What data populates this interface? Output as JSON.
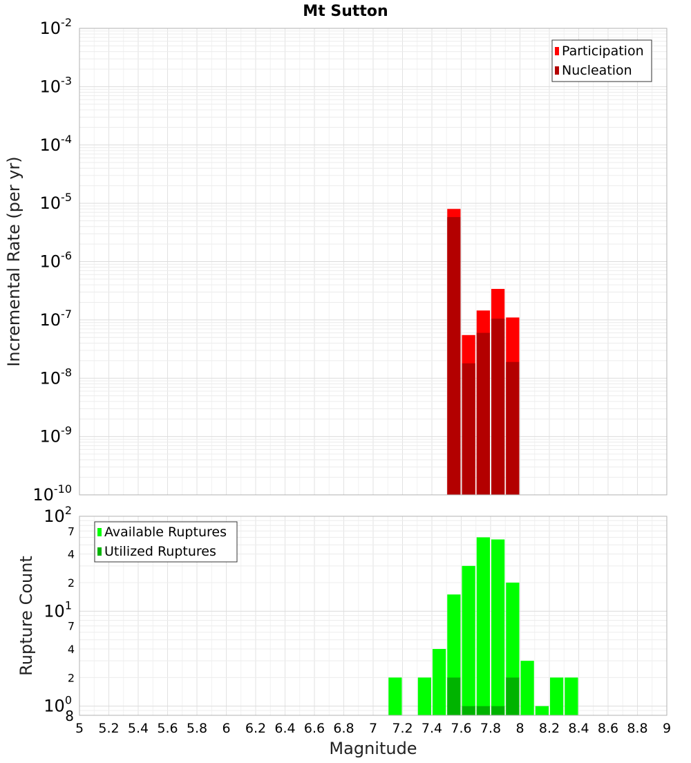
{
  "title": "Mt Sutton",
  "colors": {
    "participation": "#ff0000",
    "nucleation": "#b30000",
    "available": "#00ff00",
    "utilized": "#00b300",
    "grid": "#e4e4e4",
    "frame": "#b0b0b0"
  },
  "chart_data": [
    {
      "type": "bar",
      "panel": "top",
      "scale": "log",
      "ylabel": "Incremental Rate (per yr)",
      "ylim": [
        1e-10,
        0.01
      ],
      "yticks": [
        {
          "base": "10",
          "exp": "-10"
        },
        {
          "base": "10",
          "exp": "-9"
        },
        {
          "base": "10",
          "exp": "-8"
        },
        {
          "base": "10",
          "exp": "-7"
        },
        {
          "base": "10",
          "exp": "-6"
        },
        {
          "base": "10",
          "exp": "-5"
        },
        {
          "base": "10",
          "exp": "-4"
        },
        {
          "base": "10",
          "exp": "-3"
        },
        {
          "base": "10",
          "exp": "-2"
        }
      ],
      "grid": true,
      "legend_position": "top-right",
      "legend": [
        "Participation",
        "Nucleation"
      ],
      "bin_width": 0.1,
      "series": [
        {
          "name": "Participation",
          "x": [
            7.55,
            7.65,
            7.75,
            7.85,
            7.95
          ],
          "values": [
            8e-06,
            5.5e-08,
            1.45e-07,
            3.4e-07,
            1.1e-07
          ]
        },
        {
          "name": "Nucleation",
          "x": [
            7.55,
            7.65,
            7.75,
            7.85,
            7.95
          ],
          "values": [
            5.8e-06,
            1.8e-08,
            6e-08,
            1.05e-07,
            1.9e-08
          ]
        }
      ]
    },
    {
      "type": "bar",
      "panel": "bottom",
      "scale": "log",
      "ylabel": "Rupture Count",
      "ylim": [
        0.8,
        100
      ],
      "ytick_labels": {
        "major": [
          {
            "base": "10",
            "exp": "0"
          },
          {
            "base": "10",
            "exp": "1"
          },
          {
            "base": "10",
            "exp": "2"
          }
        ],
        "minor": [
          "8",
          "2",
          "4",
          "7",
          "2",
          "4",
          "7"
        ]
      },
      "grid": true,
      "legend_position": "top-left",
      "legend": [
        "Available Ruptures",
        "Utilized Ruptures"
      ],
      "bin_width": 0.1,
      "series": [
        {
          "name": "Available Ruptures",
          "x": [
            7.15,
            7.35,
            7.45,
            7.55,
            7.65,
            7.75,
            7.85,
            7.95,
            8.05,
            8.15,
            8.25,
            8.35
          ],
          "values": [
            2,
            2,
            4,
            15,
            30,
            60,
            57,
            20,
            3,
            1,
            2,
            2
          ]
        },
        {
          "name": "Utilized Ruptures",
          "x": [
            7.55,
            7.65,
            7.75,
            7.85,
            7.95
          ],
          "values": [
            2,
            1,
            1,
            1,
            2
          ]
        }
      ]
    }
  ],
  "xaxis": {
    "label": "Magnitude",
    "range": [
      5,
      9
    ],
    "tick_labels": [
      "5",
      "5.2",
      "5.4",
      "5.6",
      "5.8",
      "6",
      "6.2",
      "6.4",
      "6.6",
      "6.8",
      "7",
      "7.2",
      "7.4",
      "7.6",
      "7.8",
      "8",
      "8.2",
      "8.4",
      "8.6",
      "8.8",
      "9"
    ]
  }
}
